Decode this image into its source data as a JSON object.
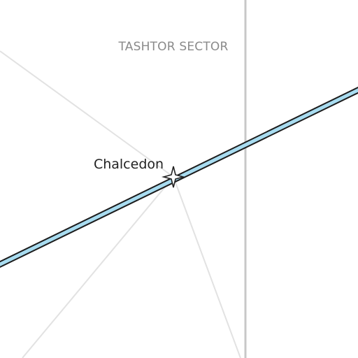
{
  "map": {
    "sector_label": "TASHTOR SECTOR",
    "place_label": "Chalcedon",
    "place_icon": "star-icon",
    "colors": {
      "background": "#ffffff",
      "sector_border": "#c8c8c8",
      "spoke": "#e2e2e2",
      "route_fill": "#a8dcf0",
      "route_outline": "#1c1c1c",
      "sector_text": "#8a8a8a",
      "place_text": "#222222",
      "marker_fill": "#ffffff",
      "marker_stroke": "#222222"
    }
  }
}
